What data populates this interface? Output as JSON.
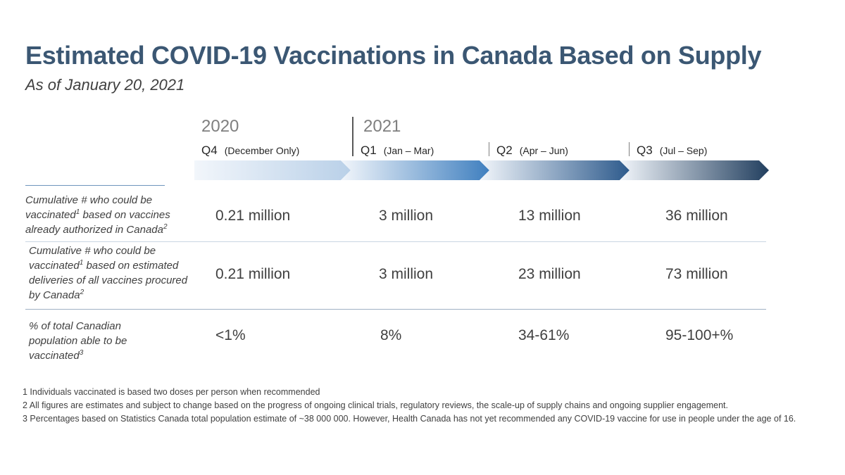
{
  "title": "Estimated COVID-19 Vaccinations in Canada Based on Supply",
  "subtitle": "As of January 20, 2021",
  "years": [
    "2020",
    "2021"
  ],
  "quarters": [
    {
      "name": "Q4",
      "range": "(December Only)"
    },
    {
      "name": "Q1",
      "range": "(Jan – Mar)"
    },
    {
      "name": "Q2",
      "range": "(Apr – Jun)"
    },
    {
      "name": "Q3",
      "range": "(Jul – Sep)"
    }
  ],
  "rows": [
    {
      "label_parts": [
        "Cumulative # who could be vaccinated",
        "1",
        " based on vaccines already authorized in Canada",
        "2"
      ],
      "values": [
        "0.21 million",
        "3 million",
        "13 million",
        "36 million"
      ]
    },
    {
      "label_parts": [
        "Cumulative # who could be vaccinated",
        "1",
        " based on estimated deliveries of all vaccines procured by Canada",
        "2"
      ],
      "values": [
        "0.21 million",
        "3 million",
        "23 million",
        "73 million"
      ]
    },
    {
      "label_parts": [
        "% of total Canadian population able to be vaccinated",
        "3"
      ],
      "values": [
        "<1%",
        "8%",
        "34-61%",
        "95-100+%"
      ]
    }
  ],
  "footnotes": [
    "1 Individuals vaccinated is based two doses per person when recommended",
    "2 All figures are estimates and subject to change based on the progress of ongoing clinical trials, regulatory reviews, the scale-up of supply chains and ongoing supplier engagement.",
    "3 Percentages based on Statistics Canada total population estimate of ~38 000 000. However, Health Canada has not yet recommended any COVID-19 vaccine for use in people under the age of 16."
  ],
  "colors": {
    "title": "#3b5773",
    "arrow_q4": [
      "#f2f6fb",
      "#b9d0e8"
    ],
    "arrow_q1": [
      "#f2f6fb",
      "#3f7fbf"
    ],
    "arrow_q2": [
      "#f2f6fb",
      "#2d5a8c"
    ],
    "arrow_q3": [
      "#f2f6fb",
      "#223f5f"
    ]
  }
}
